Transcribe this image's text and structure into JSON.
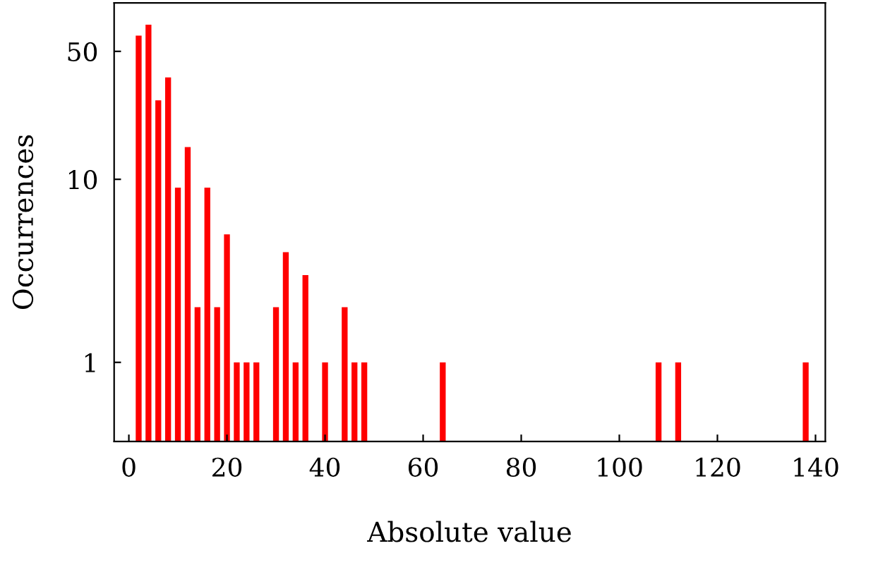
{
  "chart_data": {
    "type": "bar",
    "xlabel": "Absolute value",
    "ylabel": "Occurrences",
    "x": [
      2,
      4,
      6,
      8,
      10,
      12,
      14,
      16,
      18,
      20,
      22,
      24,
      26,
      30,
      32,
      34,
      36,
      40,
      44,
      46,
      48,
      64,
      108,
      112,
      138
    ],
    "values": [
      61,
      70,
      27,
      36,
      9,
      15,
      2,
      9,
      2,
      5,
      1,
      1,
      1,
      2,
      4,
      1,
      3,
      1,
      2,
      1,
      1,
      1,
      1,
      1,
      1
    ],
    "color": "#ff0000",
    "log": "y",
    "xlim": [
      -3,
      142
    ],
    "ylim": [
      0.37,
      92
    ],
    "xticks": [
      0,
      20,
      40,
      60,
      80,
      100,
      120,
      140
    ],
    "yticks": [
      1,
      10,
      50
    ],
    "grid": false
  }
}
